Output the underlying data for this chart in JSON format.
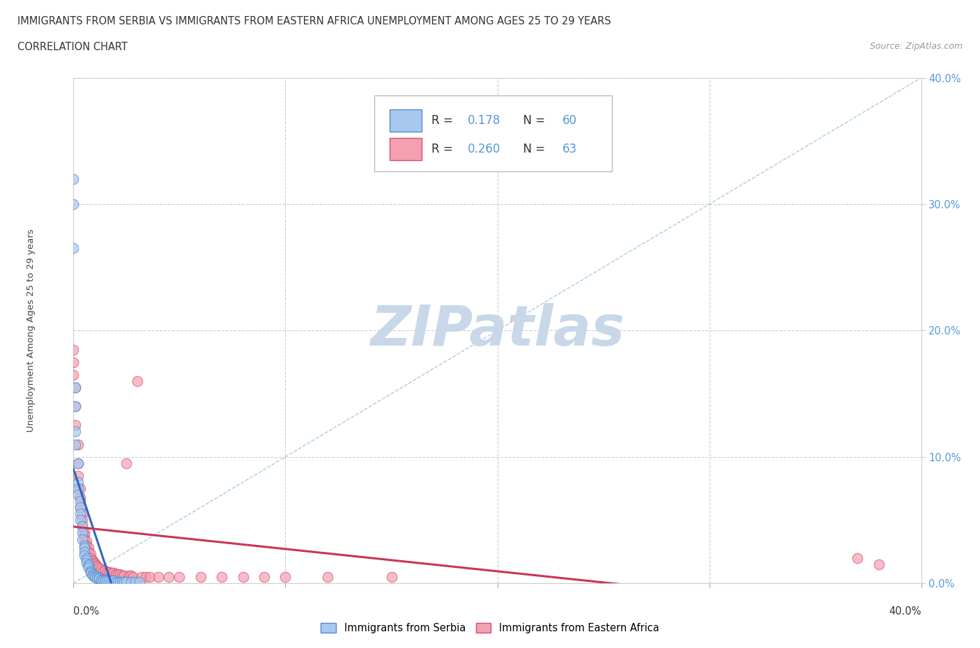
{
  "title_line1": "IMMIGRANTS FROM SERBIA VS IMMIGRANTS FROM EASTERN AFRICA UNEMPLOYMENT AMONG AGES 25 TO 29 YEARS",
  "title_line2": "CORRELATION CHART",
  "source_text": "Source: ZipAtlas.com",
  "ylabel_label": "Unemployment Among Ages 25 to 29 years",
  "serbia_R": 0.178,
  "serbia_N": 60,
  "eastern_africa_R": 0.26,
  "eastern_africa_N": 63,
  "serbia_fill": "#a8c8f0",
  "serbia_edge": "#5588cc",
  "ea_fill": "#f5a0b0",
  "ea_edge": "#d05070",
  "trendline_serbia_color": "#3366bb",
  "trendline_ea_color": "#cc3355",
  "diagonal_color": "#aaccdd",
  "watermark_color": "#c8d8e8",
  "xmin": 0.0,
  "xmax": 0.4,
  "ymin": 0.0,
  "ymax": 0.4,
  "serbia_label": "Immigrants from Serbia",
  "ea_label": "Immigrants from Eastern Africa",
  "serbia_x": [
    0.0,
    0.0,
    0.0,
    0.001,
    0.001,
    0.001,
    0.001,
    0.002,
    0.002,
    0.002,
    0.002,
    0.003,
    0.003,
    0.003,
    0.003,
    0.004,
    0.004,
    0.004,
    0.005,
    0.005,
    0.005,
    0.005,
    0.006,
    0.006,
    0.006,
    0.007,
    0.007,
    0.007,
    0.008,
    0.008,
    0.008,
    0.009,
    0.009,
    0.009,
    0.01,
    0.01,
    0.01,
    0.011,
    0.011,
    0.012,
    0.012,
    0.013,
    0.013,
    0.014,
    0.014,
    0.015,
    0.015,
    0.016,
    0.017,
    0.018,
    0.019,
    0.02,
    0.021,
    0.022,
    0.023,
    0.024,
    0.025,
    0.027,
    0.029,
    0.031
  ],
  "serbia_y": [
    0.32,
    0.3,
    0.265,
    0.155,
    0.14,
    0.12,
    0.11,
    0.095,
    0.08,
    0.075,
    0.07,
    0.065,
    0.06,
    0.055,
    0.05,
    0.045,
    0.04,
    0.035,
    0.03,
    0.028,
    0.025,
    0.022,
    0.02,
    0.018,
    0.016,
    0.015,
    0.014,
    0.012,
    0.01,
    0.009,
    0.008,
    0.007,
    0.007,
    0.006,
    0.006,
    0.005,
    0.005,
    0.005,
    0.004,
    0.004,
    0.004,
    0.003,
    0.003,
    0.003,
    0.003,
    0.003,
    0.002,
    0.002,
    0.002,
    0.002,
    0.002,
    0.001,
    0.001,
    0.001,
    0.001,
    0.001,
    0.001,
    0.001,
    0.001,
    0.001
  ],
  "ea_x": [
    0.0,
    0.0,
    0.0,
    0.001,
    0.001,
    0.001,
    0.002,
    0.002,
    0.002,
    0.003,
    0.003,
    0.003,
    0.004,
    0.004,
    0.004,
    0.005,
    0.005,
    0.005,
    0.006,
    0.006,
    0.007,
    0.007,
    0.008,
    0.008,
    0.009,
    0.009,
    0.01,
    0.01,
    0.011,
    0.011,
    0.012,
    0.013,
    0.014,
    0.015,
    0.016,
    0.017,
    0.018,
    0.019,
    0.02,
    0.021,
    0.022,
    0.023,
    0.024,
    0.025,
    0.026,
    0.027,
    0.028,
    0.03,
    0.032,
    0.034,
    0.036,
    0.04,
    0.045,
    0.05,
    0.06,
    0.07,
    0.08,
    0.09,
    0.1,
    0.12,
    0.15,
    0.37,
    0.38
  ],
  "ea_y": [
    0.185,
    0.175,
    0.165,
    0.155,
    0.14,
    0.125,
    0.11,
    0.095,
    0.085,
    0.075,
    0.068,
    0.06,
    0.055,
    0.05,
    0.045,
    0.04,
    0.038,
    0.035,
    0.033,
    0.03,
    0.028,
    0.025,
    0.023,
    0.02,
    0.018,
    0.017,
    0.016,
    0.015,
    0.014,
    0.013,
    0.012,
    0.011,
    0.01,
    0.01,
    0.009,
    0.009,
    0.008,
    0.008,
    0.007,
    0.007,
    0.007,
    0.006,
    0.006,
    0.095,
    0.006,
    0.006,
    0.005,
    0.16,
    0.005,
    0.005,
    0.005,
    0.005,
    0.005,
    0.005,
    0.005,
    0.005,
    0.005,
    0.005,
    0.005,
    0.005,
    0.005,
    0.02,
    0.015
  ]
}
